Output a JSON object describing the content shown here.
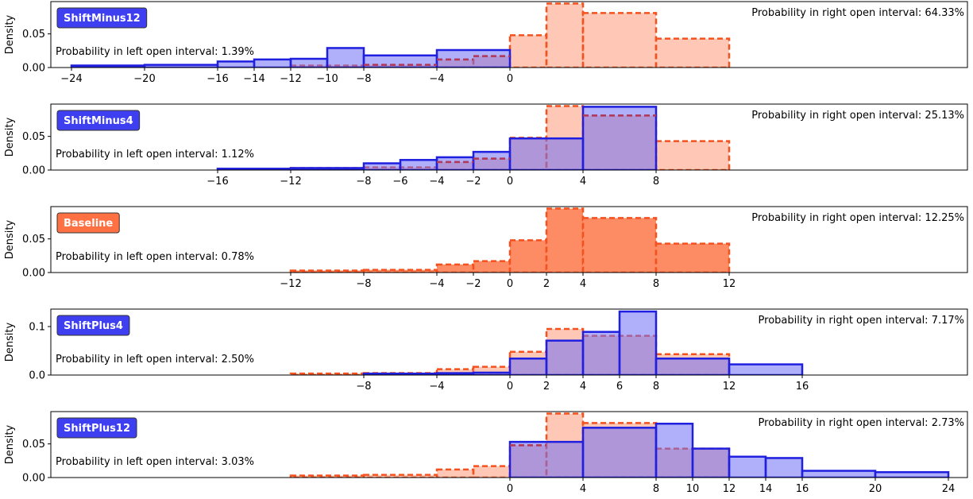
{
  "colors": {
    "blue_edge": "#1f1fe0",
    "blue_fill": "#6e6ef5",
    "orange_edge": "#f4511e",
    "orange_fill": "#ff9a7a",
    "baseline_fill": "#fd8b64",
    "purple_dash": "#b03a5a",
    "badge_blue": "#3f3ff2",
    "badge_orange": "#ff7043"
  },
  "chart_data": [
    {
      "type": "bar",
      "label": "ShiftMinus12",
      "ylabel": "Density",
      "ylim": [
        0,
        0.098
      ],
      "yticks": [
        0,
        0.05
      ],
      "ytick_labels": [
        "0.00",
        "0.05"
      ],
      "xticks": [
        -24,
        -20,
        -16,
        -14,
        -12,
        -10,
        -8,
        -4,
        0
      ],
      "xtick_labels": [
        "−24",
        "−20",
        "−16",
        "−14",
        "−12",
        "−10",
        "−8",
        "−4",
        "0"
      ],
      "left_text": "Probability in left open interval: 1.39%",
      "right_text": "Probability in right open interval: 64.33%",
      "bins": [
        [
          -24,
          -20,
          0.003
        ],
        [
          -20,
          -16,
          0.004
        ],
        [
          -16,
          -14,
          0.009
        ],
        [
          -14,
          -12,
          0.012
        ],
        [
          -12,
          -10,
          0.013
        ],
        [
          -10,
          -8,
          0.029
        ],
        [
          -8,
          -4,
          0.018
        ],
        [
          -4,
          0,
          0.026
        ]
      ],
      "baseline_bins": [
        [
          -12,
          -8,
          0.003
        ],
        [
          -8,
          -4,
          0.004
        ],
        [
          -4,
          -2,
          0.012
        ],
        [
          -2,
          0,
          0.017
        ],
        [
          0,
          2,
          0.048
        ],
        [
          2,
          4,
          0.095
        ],
        [
          4,
          8,
          0.081
        ],
        [
          8,
          12,
          0.043
        ]
      ]
    },
    {
      "type": "bar",
      "label": "ShiftMinus4",
      "ylabel": "Density",
      "ylim": [
        0,
        0.098
      ],
      "yticks": [
        0,
        0.05
      ],
      "ytick_labels": [
        "0.00",
        "0.05"
      ],
      "xticks": [
        -16,
        -12,
        -8,
        -6,
        -4,
        -2,
        0,
        4,
        8
      ],
      "xtick_labels": [
        "−16",
        "−12",
        "−8",
        "−6",
        "−4",
        "−2",
        "0",
        "4",
        "8"
      ],
      "left_text": "Probability in left open interval: 1.12%",
      "right_text": "Probability in right open interval: 25.13%",
      "bins": [
        [
          -16,
          -12,
          0.002
        ],
        [
          -12,
          -8,
          0.003
        ],
        [
          -8,
          -6,
          0.01
        ],
        [
          -6,
          -4,
          0.015
        ],
        [
          -4,
          -2,
          0.019
        ],
        [
          -2,
          0,
          0.027
        ],
        [
          0,
          4,
          0.047
        ],
        [
          4,
          8,
          0.094
        ]
      ],
      "baseline_bins": [
        [
          -12,
          -8,
          0.003
        ],
        [
          -8,
          -4,
          0.004
        ],
        [
          -4,
          -2,
          0.012
        ],
        [
          -2,
          0,
          0.017
        ],
        [
          0,
          2,
          0.048
        ],
        [
          2,
          4,
          0.095
        ],
        [
          4,
          8,
          0.081
        ],
        [
          8,
          12,
          0.043
        ]
      ]
    },
    {
      "type": "bar",
      "label": "Baseline",
      "ylabel": "Density",
      "ylim": [
        0,
        0.098
      ],
      "yticks": [
        0,
        0.05
      ],
      "ytick_labels": [
        "0.00",
        "0.05"
      ],
      "xticks": [
        -12,
        -8,
        -4,
        -2,
        0,
        2,
        4,
        8,
        12
      ],
      "xtick_labels": [
        "−12",
        "−8",
        "−4",
        "−2",
        "0",
        "2",
        "4",
        "8",
        "12"
      ],
      "left_text": "Probability in left open interval: 0.78%",
      "right_text": "Probability in right open interval: 12.25%",
      "bins": [
        [
          -12,
          -8,
          0.003
        ],
        [
          -8,
          -4,
          0.004
        ],
        [
          -4,
          -2,
          0.012
        ],
        [
          -2,
          0,
          0.017
        ],
        [
          0,
          2,
          0.048
        ],
        [
          2,
          4,
          0.095
        ],
        [
          4,
          8,
          0.081
        ],
        [
          8,
          12,
          0.043
        ]
      ],
      "baseline_bins": []
    },
    {
      "type": "bar",
      "label": "ShiftPlus4",
      "ylabel": "Density",
      "ylim": [
        0,
        0.136
      ],
      "yticks": [
        0,
        0.1
      ],
      "ytick_labels": [
        "0.0",
        "0.1"
      ],
      "xticks": [
        -8,
        -4,
        0,
        2,
        4,
        6,
        8,
        12,
        16
      ],
      "xtick_labels": [
        "−8",
        "−4",
        "0",
        "2",
        "4",
        "6",
        "8",
        "12",
        "16"
      ],
      "left_text": "Probability in left open interval: 2.50%",
      "right_text": "Probability in right open interval: 7.17%",
      "bins": [
        [
          -8,
          -4,
          0.003
        ],
        [
          -4,
          -2,
          0.004
        ],
        [
          -2,
          0,
          0.005
        ],
        [
          0,
          2,
          0.034
        ],
        [
          2,
          4,
          0.071
        ],
        [
          4,
          6,
          0.089
        ],
        [
          6,
          8,
          0.131
        ],
        [
          8,
          12,
          0.034
        ],
        [
          12,
          16,
          0.022
        ]
      ],
      "baseline_bins": [
        [
          -12,
          -8,
          0.003
        ],
        [
          -8,
          -4,
          0.004
        ],
        [
          -4,
          -2,
          0.012
        ],
        [
          -2,
          0,
          0.017
        ],
        [
          0,
          2,
          0.048
        ],
        [
          2,
          4,
          0.095
        ],
        [
          4,
          8,
          0.081
        ],
        [
          8,
          12,
          0.043
        ]
      ]
    },
    {
      "type": "bar",
      "label": "ShiftPlus12",
      "ylabel": "Density",
      "ylim": [
        0,
        0.098
      ],
      "yticks": [
        0,
        0.05
      ],
      "ytick_labels": [
        "0.00",
        "0.05"
      ],
      "xticks": [
        0,
        4,
        8,
        10,
        12,
        14,
        16,
        20,
        24
      ],
      "xtick_labels": [
        "0",
        "4",
        "8",
        "10",
        "12",
        "14",
        "16",
        "20",
        "24"
      ],
      "left_text": "Probability in left open interval: 3.03%",
      "right_text": "Probability in right open interval: 2.73%",
      "bins": [
        [
          0,
          4,
          0.053
        ],
        [
          4,
          8,
          0.074
        ],
        [
          8,
          10,
          0.08
        ],
        [
          10,
          12,
          0.043
        ],
        [
          12,
          14,
          0.031
        ],
        [
          14,
          16,
          0.029
        ],
        [
          16,
          20,
          0.01
        ],
        [
          20,
          24,
          0.008
        ]
      ],
      "baseline_bins": [
        [
          -12,
          -8,
          0.003
        ],
        [
          -8,
          -4,
          0.004
        ],
        [
          -4,
          -2,
          0.012
        ],
        [
          -2,
          0,
          0.017
        ],
        [
          0,
          2,
          0.048
        ],
        [
          2,
          4,
          0.095
        ],
        [
          4,
          8,
          0.081
        ],
        [
          8,
          12,
          0.043
        ]
      ]
    }
  ]
}
